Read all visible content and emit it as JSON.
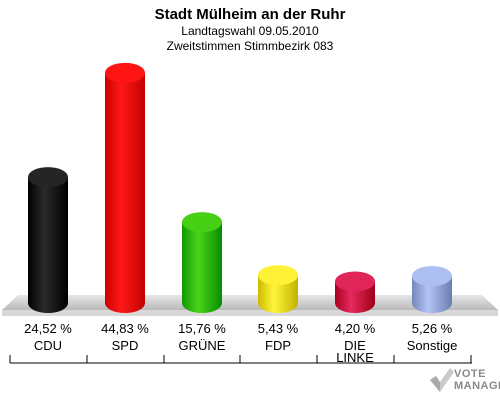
{
  "title": "Stadt Mülheim an der Ruhr",
  "subtitle1": "Landtagswahl 09.05.2010",
  "subtitle2": "Zweitstimmen Stimmbezirk 083",
  "logo": {
    "line1": "VOTE",
    "line2": "MANAGER"
  },
  "chart_data": {
    "type": "bar",
    "categories": [
      "CDU",
      "SPD",
      "GRÜNE",
      "FDP",
      "DIE LINKE",
      "Sonstige"
    ],
    "values": [
      24.52,
      44.83,
      15.76,
      5.43,
      4.2,
      5.26
    ],
    "value_labels": [
      "24,52 %",
      "44,83 %",
      "15,76 %",
      "5,43 %",
      "4,20 %",
      "5,26 %"
    ],
    "colors": [
      "#111111",
      "#ee0000",
      "#33bb00",
      "#f0dd22",
      "#cc1144",
      "#99aadd"
    ],
    "title": "Stadt Mülheim an der Ruhr",
    "ylim": [
      0,
      45
    ],
    "grid": false,
    "legend": "none"
  }
}
